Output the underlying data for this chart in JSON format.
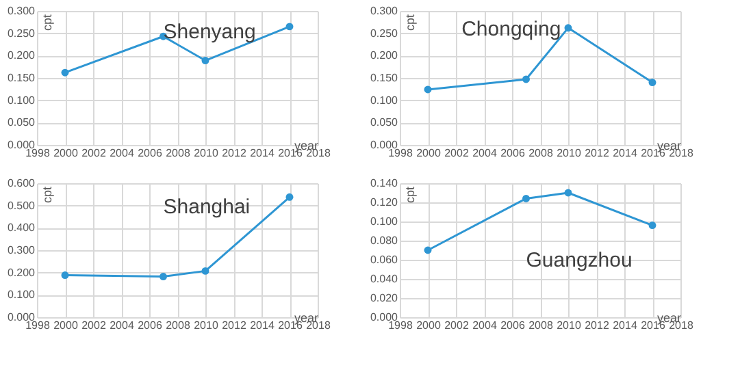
{
  "chart_data": [
    {
      "type": "line",
      "title": "Shenyang",
      "xlabel": "year",
      "ylabel": "cpt",
      "x": [
        2000,
        2007,
        2010,
        2016
      ],
      "series": [
        {
          "color": "#2e96d3",
          "values": [
            0.162,
            0.243,
            0.189,
            0.265
          ]
        }
      ],
      "xlim": [
        1998,
        2018
      ],
      "xticks": [
        1998,
        2000,
        2002,
        2004,
        2006,
        2008,
        2010,
        2012,
        2014,
        2016,
        2018
      ],
      "ylim": [
        0,
        0.3
      ],
      "yticks": [
        {
          "value": 0,
          "label": "0.000"
        },
        {
          "value": 0.05,
          "label": "0.050"
        },
        {
          "value": 0.1,
          "label": "0.100"
        },
        {
          "value": 0.15,
          "label": "0.150"
        },
        {
          "value": 0.2,
          "label": "0.200"
        },
        {
          "value": 0.25,
          "label": "0.250"
        },
        {
          "value": 0.3,
          "label": "0.300"
        }
      ],
      "grid": true,
      "marker": "circle"
    },
    {
      "type": "line",
      "title": "Chongqing",
      "xlabel": "year",
      "ylabel": "cpt",
      "x": [
        2000,
        2007,
        2010,
        2016
      ],
      "series": [
        {
          "color": "#2e96d3",
          "values": [
            0.124,
            0.147,
            0.262,
            0.14
          ]
        }
      ],
      "xlim": [
        1998,
        2018
      ],
      "xticks": [
        1998,
        2000,
        2002,
        2004,
        2006,
        2008,
        2010,
        2012,
        2014,
        2016,
        2018
      ],
      "ylim": [
        0,
        0.3
      ],
      "yticks": [
        {
          "value": 0,
          "label": "0.000"
        },
        {
          "value": 0.05,
          "label": "0.050"
        },
        {
          "value": 0.1,
          "label": "0.100"
        },
        {
          "value": 0.15,
          "label": "0.150"
        },
        {
          "value": 0.2,
          "label": "0.200"
        },
        {
          "value": 0.25,
          "label": "0.250"
        },
        {
          "value": 0.3,
          "label": "0.300"
        }
      ],
      "grid": true,
      "marker": "circle"
    },
    {
      "type": "line",
      "title": "Shanghai",
      "xlabel": "year",
      "ylabel": "cpt",
      "x": [
        2000,
        2007,
        2010,
        2016
      ],
      "series": [
        {
          "color": "#2e96d3",
          "values": [
            0.188,
            0.182,
            0.207,
            0.538
          ]
        }
      ],
      "xlim": [
        1998,
        2018
      ],
      "xticks": [
        1998,
        2000,
        2002,
        2004,
        2006,
        2008,
        2010,
        2012,
        2014,
        2016,
        2018
      ],
      "ylim": [
        0,
        0.6
      ],
      "yticks": [
        {
          "value": 0,
          "label": "0.000"
        },
        {
          "value": 0.1,
          "label": "0.100"
        },
        {
          "value": 0.2,
          "label": "0.200"
        },
        {
          "value": 0.3,
          "label": "0.300"
        },
        {
          "value": 0.4,
          "label": "0.400"
        },
        {
          "value": 0.5,
          "label": "0.500"
        },
        {
          "value": 0.6,
          "label": "0.600"
        }
      ],
      "grid": true,
      "marker": "circle"
    },
    {
      "type": "line",
      "title": "Guangzhou",
      "xlabel": "year",
      "ylabel": "cpt",
      "x": [
        2000,
        2007,
        2010,
        2016
      ],
      "series": [
        {
          "color": "#2e96d3",
          "values": [
            0.07,
            0.124,
            0.13,
            0.096
          ]
        }
      ],
      "xlim": [
        1998,
        2018
      ],
      "xticks": [
        1998,
        2000,
        2002,
        2004,
        2006,
        2008,
        2010,
        2012,
        2014,
        2016,
        2018
      ],
      "ylim": [
        0,
        0.14
      ],
      "yticks": [
        {
          "value": 0,
          "label": "0.000"
        },
        {
          "value": 0.02,
          "label": "0.020"
        },
        {
          "value": 0.04,
          "label": "0.040"
        },
        {
          "value": 0.06,
          "label": "0.060"
        },
        {
          "value": 0.08,
          "label": "0.080"
        },
        {
          "value": 0.1,
          "label": "0.100"
        },
        {
          "value": 0.12,
          "label": "0.120"
        },
        {
          "value": 0.14,
          "label": "0.140"
        }
      ],
      "grid": true,
      "marker": "circle"
    }
  ]
}
